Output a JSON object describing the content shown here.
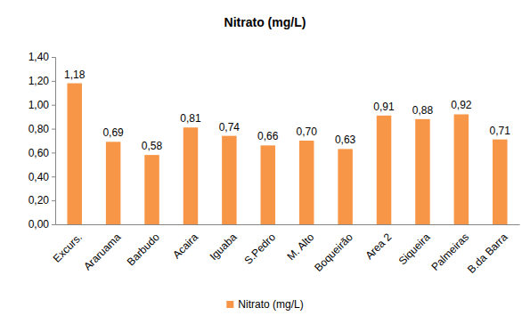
{
  "chart_data": {
    "type": "bar",
    "title": "Nitrato (mg/L)",
    "categories": [
      "Excurs.",
      "Araruama",
      "Barbudo",
      "Acaira",
      "Iguaba",
      "S.Pedro",
      "M. Alto",
      "Boqueirão",
      "Area 2",
      "Siqueira",
      "Palmeiras",
      "B.da Barra"
    ],
    "series": [
      {
        "name": "Nitrato (mg/L)",
        "color": "#f79646",
        "values": [
          1.18,
          0.69,
          0.58,
          0.81,
          0.74,
          0.66,
          0.7,
          0.63,
          0.91,
          0.88,
          0.92,
          0.71
        ],
        "value_labels": [
          "1,18",
          "0,69",
          "0,58",
          "0,81",
          "0,74",
          "0,66",
          "0,70",
          "0,63",
          "0,91",
          "0,88",
          "0,92",
          "0,71"
        ]
      }
    ],
    "ylim": [
      0,
      1.4
    ],
    "yticks": [
      {
        "value": 0,
        "label": "0,00"
      },
      {
        "value": 0.2,
        "label": "0,20"
      },
      {
        "value": 0.4,
        "label": "0,40"
      },
      {
        "value": 0.6,
        "label": "0,60"
      },
      {
        "value": 0.8,
        "label": "0,80"
      },
      {
        "value": 1.0,
        "label": "1,00"
      },
      {
        "value": 1.2,
        "label": "1,20"
      },
      {
        "value": 1.4,
        "label": "1,40"
      }
    ],
    "grid": false,
    "data_labels": true,
    "legend": "bottom"
  }
}
